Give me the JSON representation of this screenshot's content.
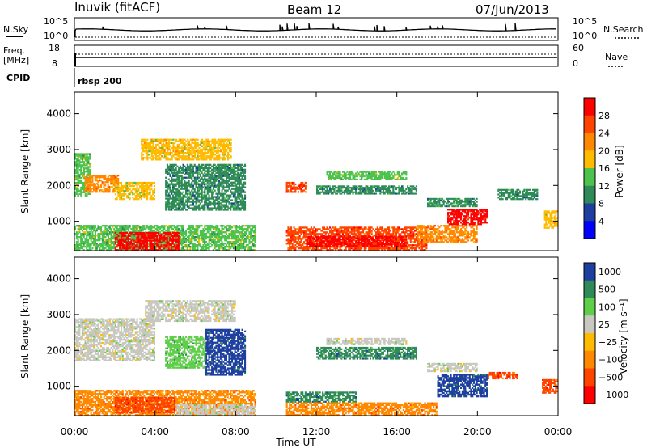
{
  "header": {
    "radar": "Inuvik (fitACF)",
    "beam": "Beam 12",
    "date": "07/Jun/2013"
  },
  "top_panels": {
    "nsky_label": "N.Sky",
    "nsky_ticks": [
      "10^5",
      "10^0"
    ],
    "nsearch_label": "N.Search",
    "nsearch_ticks": [
      "10^5",
      "10^0"
    ],
    "freq_label": "Freq.",
    "freq_unit": "[MHz]",
    "freq_ticks": [
      "18",
      "8"
    ],
    "nave_label": "Nave",
    "nave_ticks": [
      "60",
      "0"
    ],
    "cpid_label": "CPID",
    "cpid_value": "rbsp 200"
  },
  "chart_data": [
    {
      "type": "heatmap",
      "name": "power-panel",
      "ylabel": "Slant Range [km]",
      "xlabel": "Time UT",
      "x_ticks": [
        "00:00",
        "04:00",
        "08:00",
        "12:00",
        "16:00",
        "20:00",
        "00:00"
      ],
      "xlim_hours": [
        0,
        24
      ],
      "ylim": [
        180,
        4600
      ],
      "y_ticks": [
        1000,
        2000,
        3000,
        4000
      ],
      "colorbar": {
        "label": "Power [dB]",
        "ticks": [
          "28",
          "24",
          "20",
          "16",
          "12",
          "8",
          "4"
        ],
        "colors": [
          "#ff0000",
          "#ff4400",
          "#ff8800",
          "#ffbb00",
          "#4cc34c",
          "#2e8b57",
          "#1e3fa0",
          "#0000ff"
        ]
      },
      "regions": [
        {
          "t0": 0.0,
          "t1": 0.8,
          "r0": 1700,
          "r1": 2900,
          "level": "12"
        },
        {
          "t0": 0.5,
          "t1": 2.2,
          "r0": 1800,
          "r1": 2300,
          "level": "20"
        },
        {
          "t0": 2.0,
          "t1": 4.0,
          "r0": 1600,
          "r1": 2100,
          "level": "16"
        },
        {
          "t0": 0.0,
          "t1": 9.0,
          "r0": 180,
          "r1": 900,
          "level": "12"
        },
        {
          "t0": 2.0,
          "t1": 5.2,
          "r0": 180,
          "r1": 700,
          "level": "28"
        },
        {
          "t0": 3.3,
          "t1": 7.8,
          "r0": 2700,
          "r1": 3300,
          "level": "16"
        },
        {
          "t0": 4.5,
          "t1": 8.5,
          "r0": 1300,
          "r1": 2600,
          "level": "8"
        },
        {
          "t0": 10.5,
          "t1": 17.5,
          "r0": 180,
          "r1": 850,
          "level": "24"
        },
        {
          "t0": 11.5,
          "t1": 16.5,
          "r0": 300,
          "r1": 600,
          "level": "28"
        },
        {
          "t0": 10.5,
          "t1": 11.5,
          "r0": 1800,
          "r1": 2100,
          "level": "24"
        },
        {
          "t0": 12.0,
          "t1": 17.0,
          "r0": 1750,
          "r1": 2000,
          "level": "8"
        },
        {
          "t0": 12.5,
          "t1": 16.5,
          "r0": 2150,
          "r1": 2400,
          "level": "12"
        },
        {
          "t0": 17.0,
          "t1": 20.0,
          "r0": 400,
          "r1": 900,
          "level": "20"
        },
        {
          "t0": 18.5,
          "t1": 20.5,
          "r0": 900,
          "r1": 1350,
          "level": "28"
        },
        {
          "t0": 17.5,
          "t1": 20.0,
          "r0": 1400,
          "r1": 1650,
          "level": "8"
        },
        {
          "t0": 21.0,
          "t1": 23.0,
          "r0": 1600,
          "r1": 1900,
          "level": "8"
        },
        {
          "t0": 23.3,
          "t1": 24.0,
          "r0": 800,
          "r1": 1300,
          "level": "16"
        }
      ]
    },
    {
      "type": "heatmap",
      "name": "velocity-panel",
      "ylabel": "Slant Range [km]",
      "xlabel": "Time UT",
      "x_ticks": [
        "00:00",
        "04:00",
        "08:00",
        "12:00",
        "16:00",
        "20:00",
        "00:00"
      ],
      "xlim_hours": [
        0,
        24
      ],
      "ylim": [
        180,
        4600
      ],
      "y_ticks": [
        1000,
        2000,
        3000,
        4000
      ],
      "colorbar": {
        "label": "Velocity [m s⁻¹]",
        "ticks": [
          "1000",
          "500",
          "100",
          "25",
          "−25",
          "−100",
          "−500",
          "−1000"
        ],
        "colors": [
          "#1e3fa0",
          "#2e8b57",
          "#5fcf4a",
          "#c8c8c0",
          "#ffbb00",
          "#ff8800",
          "#ff4400",
          "#ff0000"
        ]
      },
      "regions": [
        {
          "t0": 0.0,
          "t1": 4.0,
          "r0": 1700,
          "r1": 2900,
          "level": "25"
        },
        {
          "t0": 0.0,
          "t1": 9.0,
          "r0": 180,
          "r1": 900,
          "level": "-100"
        },
        {
          "t0": 2.0,
          "t1": 5.0,
          "r0": 250,
          "r1": 700,
          "level": "-500"
        },
        {
          "t0": 5.0,
          "t1": 9.0,
          "r0": 180,
          "r1": 500,
          "level": "25"
        },
        {
          "t0": 3.5,
          "t1": 8.0,
          "r0": 2800,
          "r1": 3400,
          "level": "25"
        },
        {
          "t0": 6.5,
          "t1": 8.5,
          "r0": 1300,
          "r1": 2600,
          "level": "1000"
        },
        {
          "t0": 4.5,
          "t1": 6.5,
          "r0": 1500,
          "r1": 2400,
          "level": "100"
        },
        {
          "t0": 10.5,
          "t1": 14.0,
          "r0": 550,
          "r1": 850,
          "level": "500"
        },
        {
          "t0": 10.5,
          "t1": 18.0,
          "r0": 180,
          "r1": 550,
          "level": "-100"
        },
        {
          "t0": 12.0,
          "t1": 17.0,
          "r0": 1750,
          "r1": 2100,
          "level": "500"
        },
        {
          "t0": 12.5,
          "t1": 16.5,
          "r0": 2150,
          "r1": 2350,
          "level": "25"
        },
        {
          "t0": 18.0,
          "t1": 20.5,
          "r0": 700,
          "r1": 1350,
          "level": "1000"
        },
        {
          "t0": 20.5,
          "t1": 22.0,
          "r0": 1200,
          "r1": 1400,
          "level": "-500"
        },
        {
          "t0": 23.2,
          "t1": 24.0,
          "r0": 800,
          "r1": 1200,
          "level": "-500"
        },
        {
          "t0": 17.5,
          "t1": 20.0,
          "r0": 1400,
          "r1": 1650,
          "level": "25"
        }
      ]
    }
  ]
}
